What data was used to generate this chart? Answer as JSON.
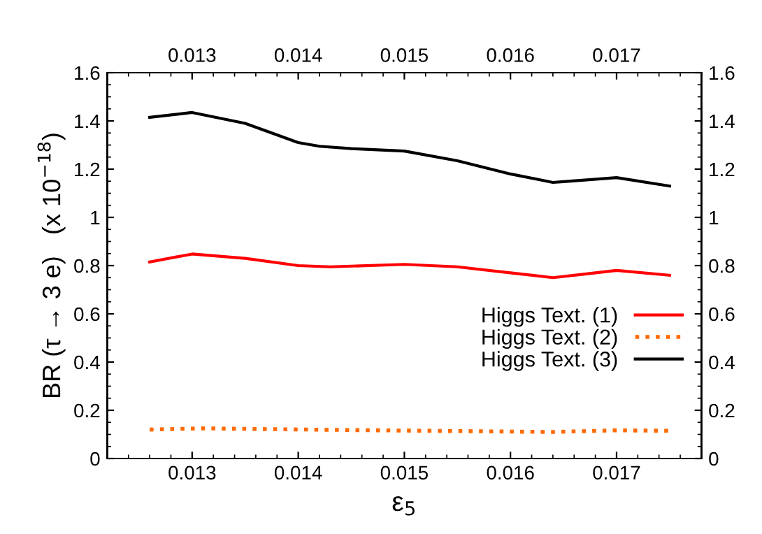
{
  "chart_data": {
    "type": "line",
    "xlabel": "ε$_{5}$",
    "ylabel": "BR (τ → 3 e)   (x 10$^{−18}$)",
    "xlim": [
      0.0122,
      0.0178
    ],
    "xticks": [
      0.013,
      0.014,
      0.015,
      0.016,
      0.017
    ],
    "x2lim": [
      0.0122,
      0.0178
    ],
    "x2ticks": [
      0.013,
      0.014,
      0.015,
      0.016,
      0.017
    ],
    "ylim": [
      0,
      1.6
    ],
    "yticks": [
      0,
      0.2,
      0.4,
      0.6,
      0.8,
      1,
      1.2,
      1.4,
      1.6
    ],
    "y2lim": [
      0,
      1.6
    ],
    "y2ticks": [
      0,
      0.2,
      0.4,
      0.6,
      0.8,
      1,
      1.2,
      1.4,
      1.6
    ],
    "grid": false,
    "legend": "right",
    "marker": "none",
    "series": [
      {
        "name": "Higgs Text. (1)",
        "color": "#ff0000",
        "line_style": "solid",
        "x": [
          0.0126,
          0.013,
          0.0135,
          0.014,
          0.0143,
          0.015,
          0.0155,
          0.016,
          0.0164,
          0.0167,
          0.017,
          0.0175
        ],
        "values": [
          0.815,
          0.848,
          0.83,
          0.8,
          0.795,
          0.805,
          0.795,
          0.77,
          0.75,
          0.765,
          0.78,
          0.76
        ]
      },
      {
        "name": "Higgs Text. (2)",
        "color": "#ff6a00",
        "line_style": "dotted",
        "x": [
          0.0126,
          0.0131,
          0.0145,
          0.0164,
          0.017,
          0.0175
        ],
        "values": [
          0.12,
          0.125,
          0.118,
          0.11,
          0.117,
          0.115
        ]
      },
      {
        "name": "Higgs Text. (3)",
        "color": "#000000",
        "line_style": "solid",
        "x": [
          0.0126,
          0.013,
          0.0135,
          0.014,
          0.0142,
          0.0145,
          0.015,
          0.0155,
          0.016,
          0.0164,
          0.0165,
          0.017,
          0.0175
        ],
        "values": [
          1.415,
          1.435,
          1.39,
          1.31,
          1.295,
          1.285,
          1.275,
          1.235,
          1.18,
          1.145,
          1.148,
          1.165,
          1.13
        ]
      }
    ]
  }
}
